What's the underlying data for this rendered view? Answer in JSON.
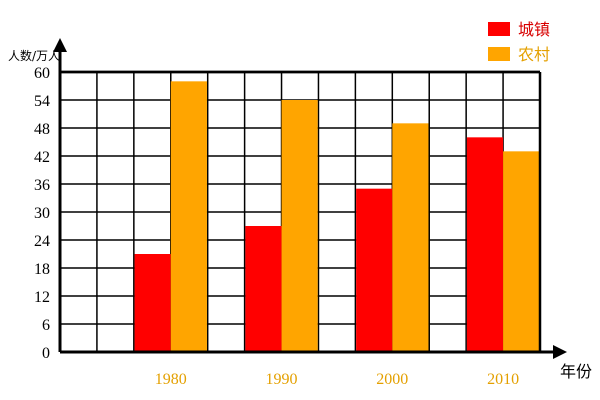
{
  "chart_data": {
    "type": "bar",
    "categories": [
      "1980",
      "1990",
      "2000",
      "2010"
    ],
    "series": [
      {
        "name": "城镇",
        "values": [
          21,
          27,
          35,
          46
        ]
      },
      {
        "name": "农村",
        "values": [
          58,
          54,
          49,
          43
        ]
      }
    ],
    "title": "",
    "xlabel": "年份",
    "ylabel": "人数/万人",
    "yticks": [
      0,
      6,
      12,
      18,
      24,
      30,
      36,
      42,
      48,
      54,
      60
    ],
    "ylim": [
      0,
      60
    ],
    "grid": true,
    "legend_position": "top-right",
    "colors": {
      "series_0": "#ff0000",
      "series_1": "#ffa500",
      "category_labels": "#e4a000",
      "legend_label_0": "#d80000",
      "legend_label_1": "#e4a000",
      "axis": "#000000"
    }
  }
}
